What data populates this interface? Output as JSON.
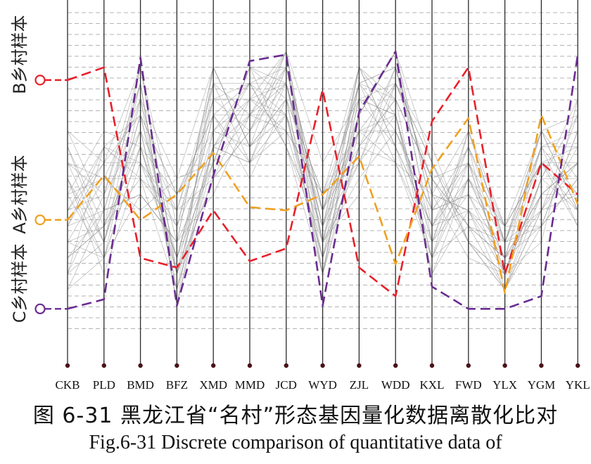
{
  "caption": {
    "cn": "图 6-31 黑龙江省“名村”形态基因量化数据离散化比对",
    "en": "Fig.6-31 Discrete comparison of quantitative data of"
  },
  "chart_data": {
    "type": "parallel-coordinates",
    "axes": [
      "CKB",
      "PLD",
      "BMD",
      "BFZ",
      "XMD",
      "MMD",
      "JCD",
      "WYD",
      "ZJL",
      "WDD",
      "KXL",
      "FWD",
      "YLX",
      "YGM",
      "YKL"
    ],
    "y_scale": "0 = bottom, 100 = top (unlabelled normalized axes)",
    "grid": "dashed horizontal lines",
    "group_labels": [
      {
        "label": "B乡村样本",
        "marker_value": 81,
        "color": "#e8202a"
      },
      {
        "label": "A乡村样本",
        "marker_value": 37,
        "color": "#f0a020"
      },
      {
        "label": "C乡村样本",
        "marker_value": 9,
        "color": "#6a2c91"
      }
    ],
    "series": [
      {
        "color": "#e8202a",
        "values": [
          81,
          85,
          25,
          22,
          40,
          24,
          28,
          78,
          22,
          13,
          68,
          85,
          20,
          55,
          45
        ]
      },
      {
        "color": "#f0a020",
        "values": [
          37,
          51,
          37,
          45,
          58,
          41,
          40,
          45,
          57,
          23,
          53,
          69,
          14,
          70,
          42
        ]
      },
      {
        "color": "#6a2c91",
        "values": [
          9,
          12,
          88,
          10,
          51,
          87,
          89,
          10,
          71,
          90,
          16,
          9,
          9,
          13,
          89
        ]
      }
    ],
    "background_lines": [
      [
        55,
        30,
        70,
        20,
        60,
        75,
        80,
        40,
        65,
        70,
        30,
        50,
        25,
        45,
        55
      ],
      [
        45,
        25,
        60,
        25,
        70,
        80,
        85,
        35,
        80,
        75,
        20,
        40,
        30,
        60,
        45
      ],
      [
        30,
        50,
        40,
        50,
        85,
        60,
        70,
        30,
        45,
        80,
        50,
        30,
        15,
        35,
        65
      ],
      [
        65,
        40,
        75,
        30,
        45,
        70,
        90,
        55,
        75,
        60,
        35,
        60,
        35,
        55,
        40
      ],
      [
        25,
        35,
        65,
        15,
        55,
        85,
        75,
        20,
        60,
        85,
        45,
        25,
        20,
        50,
        70
      ],
      [
        40,
        60,
        50,
        40,
        80,
        55,
        65,
        45,
        85,
        70,
        25,
        55,
        30,
        40,
        60
      ],
      [
        20,
        45,
        80,
        10,
        60,
        70,
        80,
        25,
        70,
        90,
        55,
        35,
        25,
        65,
        50
      ],
      [
        50,
        20,
        55,
        35,
        75,
        65,
        85,
        30,
        50,
        65,
        40,
        45,
        20,
        30,
        75
      ],
      [
        35,
        55,
        85,
        20,
        50,
        75,
        70,
        40,
        80,
        55,
        30,
        65,
        35,
        55,
        35
      ],
      [
        60,
        30,
        70,
        45,
        65,
        80,
        60,
        35,
        65,
        80,
        60,
        30,
        15,
        45,
        55
      ],
      [
        15,
        40,
        45,
        30,
        85,
        60,
        90,
        20,
        75,
        70,
        25,
        50,
        30,
        60,
        65
      ],
      [
        45,
        65,
        60,
        25,
        70,
        50,
        75,
        45,
        55,
        85,
        45,
        40,
        25,
        35,
        50
      ],
      [
        30,
        25,
        75,
        50,
        55,
        85,
        80,
        30,
        85,
        60,
        35,
        55,
        20,
        50,
        40
      ],
      [
        55,
        50,
        50,
        15,
        80,
        70,
        65,
        25,
        60,
        75,
        50,
        35,
        30,
        65,
        70
      ],
      [
        25,
        35,
        85,
        35,
        60,
        55,
        85,
        40,
        70,
        90,
        30,
        60,
        15,
        40,
        45
      ],
      [
        40,
        45,
        65,
        20,
        75,
        80,
        70,
        20,
        80,
        65,
        40,
        45,
        35,
        55,
        60
      ],
      [
        20,
        60,
        55,
        40,
        50,
        65,
        80,
        35,
        55,
        80,
        55,
        30,
        20,
        45,
        55
      ],
      [
        50,
        30,
        80,
        10,
        65,
        75,
        90,
        30,
        75,
        70,
        20,
        50,
        25,
        60,
        35
      ],
      [
        35,
        40,
        45,
        30,
        85,
        60,
        75,
        45,
        65,
        55,
        45,
        65,
        30,
        35,
        65
      ],
      [
        65,
        55,
        70,
        25,
        55,
        85,
        60,
        20,
        80,
        85,
        35,
        40,
        20,
        50,
        50
      ],
      [
        15,
        25,
        60,
        45,
        70,
        70,
        85,
        40,
        60,
        75,
        50,
        55,
        35,
        65,
        40
      ],
      [
        45,
        50,
        75,
        15,
        60,
        55,
        70,
        25,
        85,
        60,
        25,
        35,
        15,
        40,
        70
      ],
      [
        30,
        35,
        50,
        35,
        80,
        80,
        80,
        35,
        70,
        90,
        40,
        60,
        30,
        55,
        55
      ],
      [
        55,
        45,
        85,
        20,
        50,
        65,
        90,
        30,
        55,
        70,
        30,
        45,
        25,
        45,
        45
      ],
      [
        20,
        30,
        65,
        40,
        75,
        75,
        65,
        45,
        75,
        80,
        55,
        30,
        20,
        60,
        60
      ],
      [
        40,
        55,
        55,
        25,
        65,
        60,
        75,
        20,
        65,
        65,
        35,
        50,
        35,
        35,
        50
      ],
      [
        25,
        40,
        80,
        10,
        85,
        85,
        85,
        40,
        80,
        85,
        45,
        40,
        15,
        50,
        75
      ],
      [
        50,
        25,
        45,
        30,
        55,
        70,
        70,
        25,
        60,
        55,
        25,
        65,
        30,
        65,
        40
      ],
      [
        35,
        60,
        70,
        45,
        70,
        55,
        80,
        35,
        85,
        75,
        50,
        35,
        25,
        40,
        55
      ],
      [
        60,
        35,
        60,
        20,
        60,
        80,
        60,
        30,
        70,
        90,
        40,
        55,
        20,
        55,
        45
      ]
    ]
  }
}
